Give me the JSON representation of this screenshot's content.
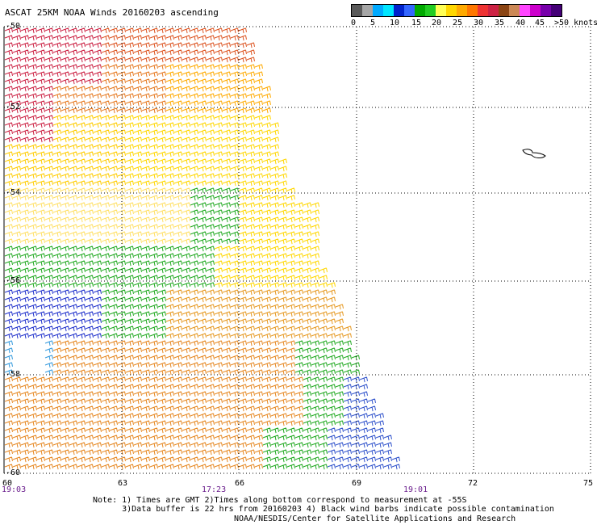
{
  "title": "ASCAT 25KM NOAA Winds 20160203 ascending",
  "legend": {
    "colors": [
      "#5a5a5a",
      "#a6a6a6",
      "#00aaff",
      "#00e6ff",
      "#0022cc",
      "#3366ff",
      "#00aa00",
      "#22cc22",
      "#ffff55",
      "#ffd700",
      "#ffaa00",
      "#ff7700",
      "#ee3333",
      "#cc2244",
      "#8b4513",
      "#cc8855",
      "#ff44ff",
      "#cc00cc",
      "#7700aa",
      "#440077"
    ],
    "ticks": [
      "0",
      "5",
      "10",
      "15",
      "20",
      "25",
      "30",
      "35",
      "40",
      "45",
      ">50 knots"
    ]
  },
  "lon_labels": [
    "60",
    "63",
    "66",
    "69",
    "72",
    "75"
  ],
  "lat_labels": [
    "-50",
    "-52",
    "-54",
    "-56",
    "-58",
    "-60"
  ],
  "time_labels": [
    "19:03",
    "17:23",
    "19:01"
  ],
  "note_lines": [
    "Note: 1) Times are GMT 2)Times along bottom correspond to measurement at -55S",
    "      3)Data buffer is 22 hrs from 20160203 4) Black wind barbs indicate possible contamination"
  ],
  "credit": "NOAA/NESDIS/Center for Satellite Applications and Research"
}
